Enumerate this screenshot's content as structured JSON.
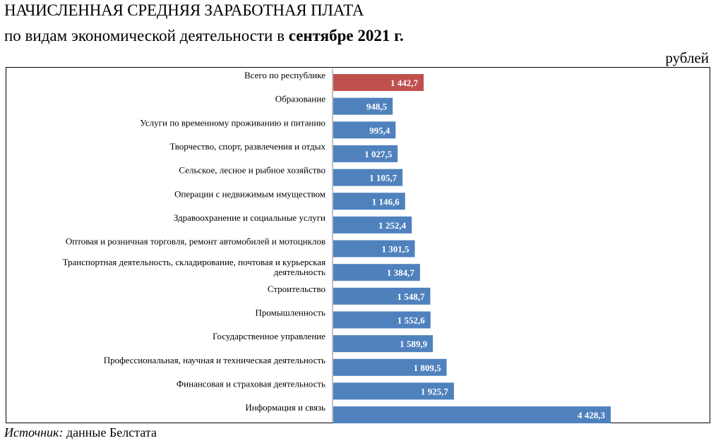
{
  "header": {
    "title_line1": "НАЧИСЛЕННАЯ СРЕДНЯЯ ЗАРАБОТНАЯ ПЛАТА",
    "title_line2_prefix": "по видам экономической деятельности в ",
    "title_line2_bold": "сентябре 2021 г.",
    "units": "рублей"
  },
  "footer": {
    "source_label": "Источник:",
    "source_text": " данные Белстата"
  },
  "colors": {
    "total_bar": "#c0504d",
    "bar": "#4f81bd"
  },
  "chart_data": {
    "type": "bar",
    "orientation": "horizontal",
    "title": "НАЧИСЛЕННАЯ СРЕДНЯЯ ЗАРАБОТНАЯ ПЛАТА по видам экономической деятельности в сентябре 2021 г.",
    "units": "рублей",
    "categories": [
      "Всего по республике",
      "Образование",
      "Услуги по временному проживанию и питанию",
      "Творчество, спорт, развлечения и отдых",
      "Сельское, лесное и рыбное хозяйство",
      "Операции с  недвижимым имуществом",
      "Здравоохранение и социальные услуги",
      "Оптовая и розничная торговля, ремонт автомобилей и мотоциклов",
      "Транспортная деятельность, складирование, почтовая и курьерская деятельность",
      "Строительство",
      "Промышленность",
      "Государственное управление",
      "Профессиональная, научная и техническая деятельность",
      "Финансовая и страховая деятельность",
      "Информация и связь"
    ],
    "category_lines": [
      [
        "Всего по республике"
      ],
      [
        "Образование"
      ],
      [
        "Услуги по временному проживанию и питанию"
      ],
      [
        "Творчество, спорт, развлечения и отдых"
      ],
      [
        "Сельское, лесное и рыбное хозяйство"
      ],
      [
        "Операции с  недвижимым имуществом"
      ],
      [
        "Здравоохранение и социальные услуги"
      ],
      [
        "Оптовая и розничная торговля, ремонт автомобилей и мотоциклов"
      ],
      [
        "Транспортная деятельность, складирование, почтовая и курьерская",
        "деятельность"
      ],
      [
        "Строительство"
      ],
      [
        "Промышленность"
      ],
      [
        "Государственное управление"
      ],
      [
        "Профессиональная, научная и техническая деятельность"
      ],
      [
        "Финансовая и страховая деятельность"
      ],
      [
        "Информация и связь"
      ]
    ],
    "values": [
      1442.7,
      948.5,
      995.4,
      1027.5,
      1105.7,
      1146.6,
      1252.4,
      1301.5,
      1384.7,
      1548.7,
      1552.6,
      1589.9,
      1809.5,
      1925.7,
      4428.3
    ],
    "value_labels": [
      "1 442,7",
      "948,5",
      "995,4",
      "1 027,5",
      "1 105,7",
      "1 146,6",
      "1 252,4",
      "1 301,5",
      "1 384,7",
      "1 548,7",
      "1 552,6",
      "1 589,9",
      "1 809,5",
      "1 925,7",
      "4 428,3"
    ],
    "highlight_index": 0,
    "xlim": [
      0,
      4428.3
    ]
  }
}
